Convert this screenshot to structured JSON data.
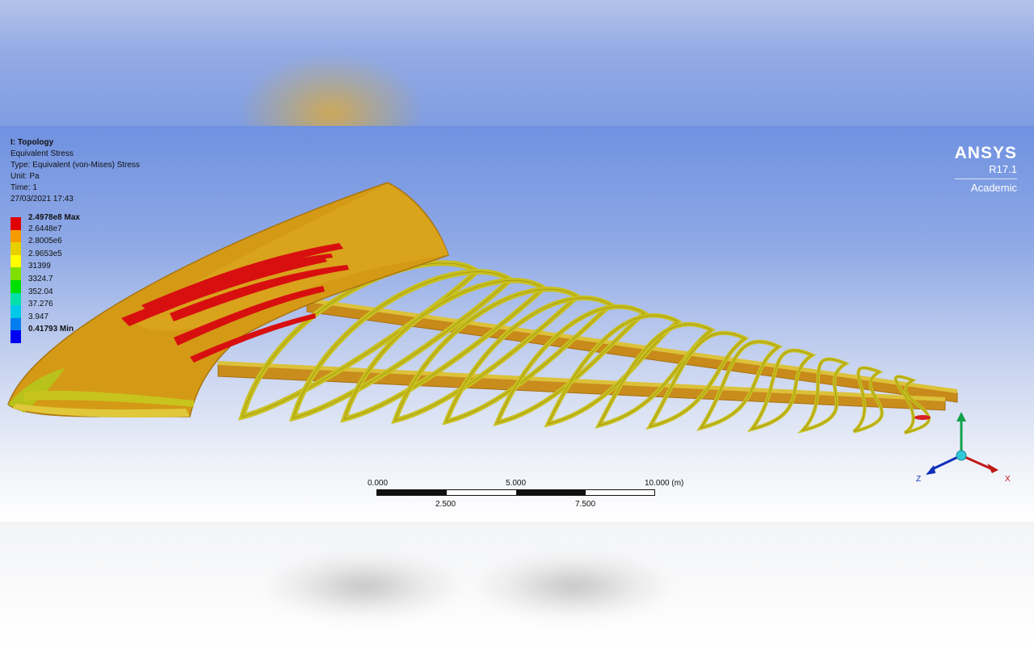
{
  "info": {
    "title": "I: Topology",
    "result": "Equivalent Stress",
    "type": "Type: Equivalent (von-Mises) Stress",
    "unit": "Unit: Pa",
    "time": "Time: 1",
    "date": "27/03/2021 17:43"
  },
  "legend": {
    "levels": [
      {
        "label": "2.4978e8 Max",
        "color": "#e00000",
        "bold": true
      },
      {
        "label": "2.6448e7",
        "color": "#f59a00",
        "bold": false
      },
      {
        "label": "2.8005e6",
        "color": "#e6d000",
        "bold": false
      },
      {
        "label": "2.9653e5",
        "color": "#ffff00",
        "bold": false
      },
      {
        "label": "31399",
        "color": "#7fe000",
        "bold": false
      },
      {
        "label": "3324.7",
        "color": "#00e000",
        "bold": false
      },
      {
        "label": "352.04",
        "color": "#00e0a8",
        "bold": false
      },
      {
        "label": "37.276",
        "color": "#00c8e8",
        "bold": false
      },
      {
        "label": "3.947",
        "color": "#007ef0",
        "bold": false
      },
      {
        "label": "0.41793 Min",
        "color": "#0000f0",
        "bold": true
      }
    ]
  },
  "brand": {
    "logo": "ANSYS",
    "version": "R17.1",
    "edition": "Academic"
  },
  "scale": {
    "top_labels": [
      "0.000",
      "5.000",
      "10.000 (m)"
    ],
    "bottom_labels": [
      "2.500",
      "7.500"
    ]
  },
  "triad": {
    "x": "X",
    "z": "Z"
  }
}
